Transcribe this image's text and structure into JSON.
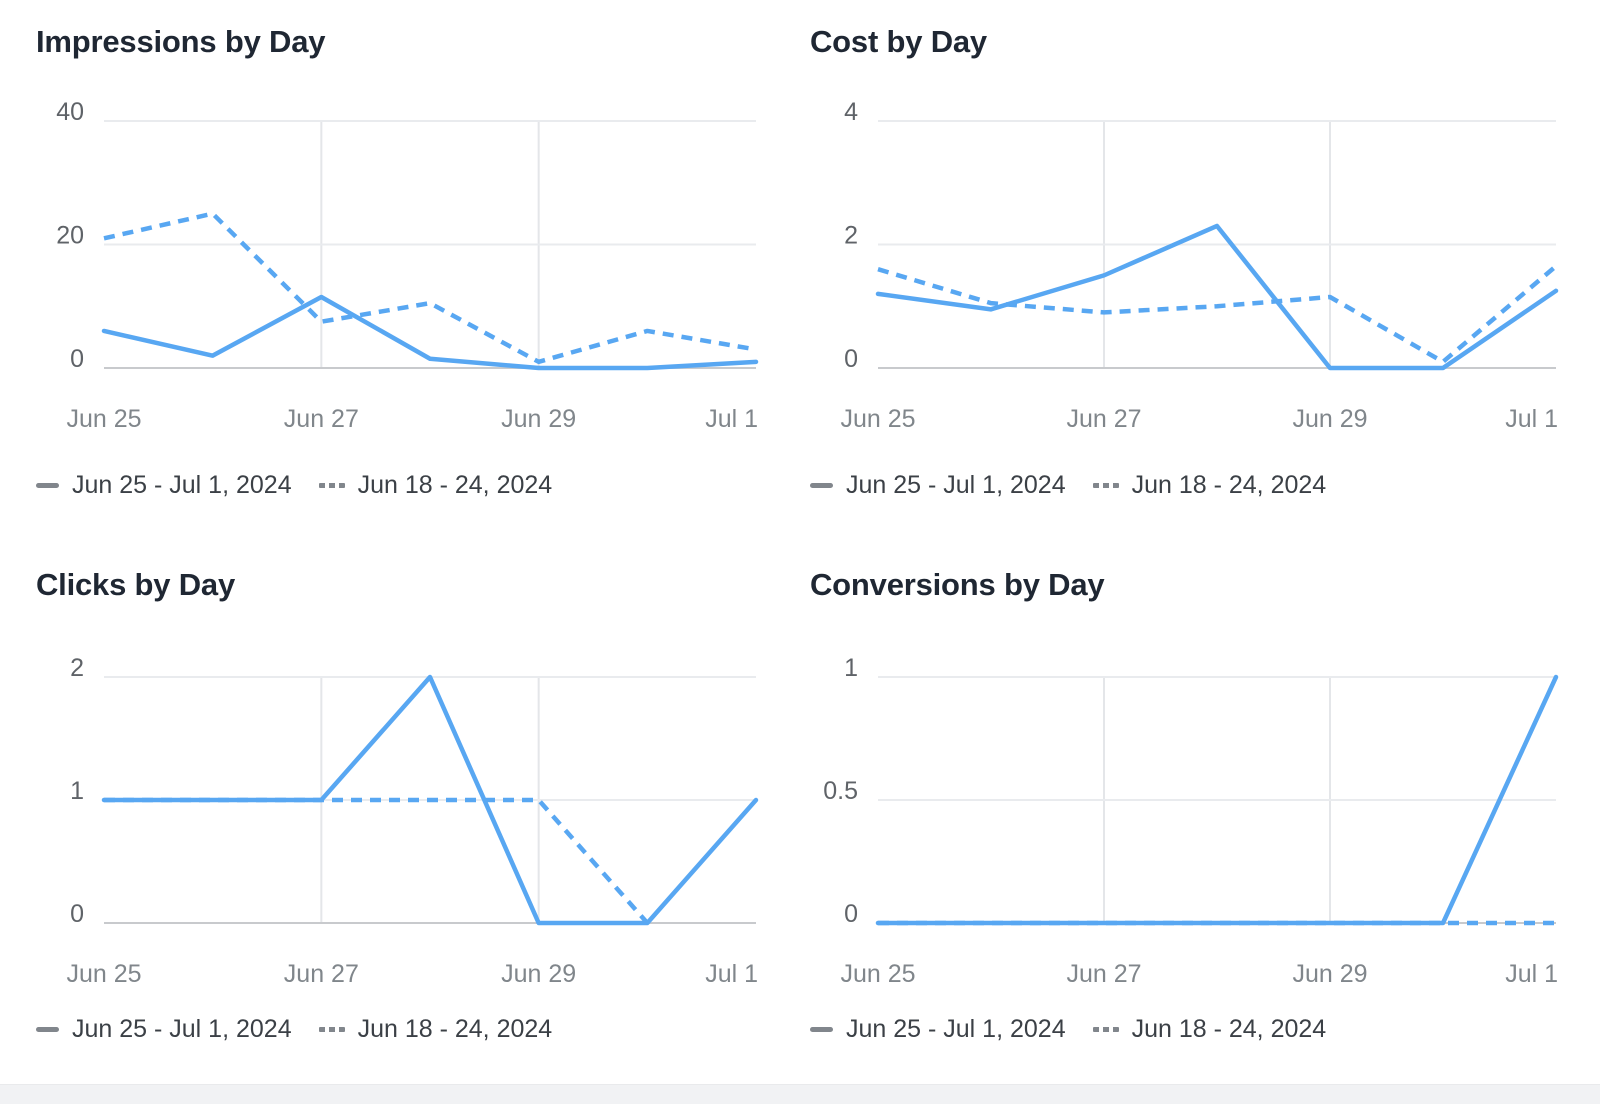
{
  "page": {
    "background": "#ffffff",
    "bottom_strip_color": "#f1f2f4"
  },
  "colors": {
    "line_blue": "#58a7f2",
    "grid": "#e9ebee",
    "vgrid": "#e4e6e9",
    "baseline": "#c8cacd",
    "y_tick_text": "#5f6368",
    "x_tick_text": "#80868b",
    "title_text": "#1f2733",
    "legend_text": "#3b4046",
    "legend_swatch": "#81868c"
  },
  "legend": {
    "current_period": "Jun 25 - Jul 1, 2024",
    "previous_period": "Jun 18 - 24, 2024"
  },
  "chart_data": [
    {
      "type": "line",
      "title": "Impressions by Day",
      "x": [
        "Jun 25",
        "Jun 26",
        "Jun 27",
        "Jun 28",
        "Jun 29",
        "Jun 30",
        "Jul 1"
      ],
      "x_tick_labels": [
        "Jun 25",
        "Jun 27",
        "Jun 29",
        "Jul 1"
      ],
      "ylim": [
        0,
        40
      ],
      "yticks": [
        0,
        20,
        40
      ],
      "y_tick_labels": [
        "0",
        "20",
        "40"
      ],
      "grid": "on",
      "legend_position": "bottom",
      "series": [
        {
          "name": "Jun 25 - Jul 1, 2024",
          "line_style": "solid",
          "values": [
            6,
            2,
            11.5,
            1.5,
            0,
            0,
            1
          ]
        },
        {
          "name": "Jun 18 - 24, 2024",
          "line_style": "dashed",
          "values": [
            21,
            25,
            7.5,
            10.5,
            1,
            6,
            3
          ]
        }
      ]
    },
    {
      "type": "line",
      "title": "Cost by Day",
      "x": [
        "Jun 25",
        "Jun 26",
        "Jun 27",
        "Jun 28",
        "Jun 29",
        "Jun 30",
        "Jul 1"
      ],
      "x_tick_labels": [
        "Jun 25",
        "Jun 27",
        "Jun 29",
        "Jul 1"
      ],
      "ylim": [
        0,
        4
      ],
      "yticks": [
        0,
        2,
        4
      ],
      "y_tick_labels": [
        "0",
        "2",
        "4"
      ],
      "grid": "on",
      "legend_position": "bottom",
      "series": [
        {
          "name": "Jun 25 - Jul 1, 2024",
          "line_style": "solid",
          "values": [
            1.2,
            0.95,
            1.5,
            2.3,
            0,
            0,
            1.25
          ]
        },
        {
          "name": "Jun 18 - 24, 2024",
          "line_style": "dashed",
          "values": [
            1.6,
            1.05,
            0.9,
            1.0,
            1.15,
            0.1,
            1.65
          ]
        }
      ]
    },
    {
      "type": "line",
      "title": "Clicks by Day",
      "x": [
        "Jun 25",
        "Jun 26",
        "Jun 27",
        "Jun 28",
        "Jun 29",
        "Jun 30",
        "Jul 1"
      ],
      "x_tick_labels": [
        "Jun 25",
        "Jun 27",
        "Jun 29",
        "Jul 1"
      ],
      "ylim": [
        0,
        2
      ],
      "yticks": [
        0,
        1,
        2
      ],
      "y_tick_labels": [
        "0",
        "1",
        "2"
      ],
      "grid": "on",
      "legend_position": "bottom",
      "series": [
        {
          "name": "Jun 25 - Jul 1, 2024",
          "line_style": "solid",
          "values": [
            1,
            1,
            1,
            2,
            0,
            0,
            1
          ]
        },
        {
          "name": "Jun 18 - 24, 2024",
          "line_style": "dashed",
          "values": [
            1,
            1,
            1,
            1,
            1,
            0,
            null
          ]
        }
      ]
    },
    {
      "type": "line",
      "title": "Conversions by Day",
      "x": [
        "Jun 25",
        "Jun 26",
        "Jun 27",
        "Jun 28",
        "Jun 29",
        "Jun 30",
        "Jul 1"
      ],
      "x_tick_labels": [
        "Jun 25",
        "Jun 27",
        "Jun 29",
        "Jul 1"
      ],
      "ylim": [
        0,
        1
      ],
      "yticks": [
        0,
        0.5,
        1
      ],
      "y_tick_labels": [
        "0",
        "0.5",
        "1"
      ],
      "grid": "on",
      "legend_position": "bottom",
      "series": [
        {
          "name": "Jun 25 - Jul 1, 2024",
          "line_style": "solid",
          "values": [
            0,
            0,
            0,
            0,
            0,
            0,
            1
          ]
        },
        {
          "name": "Jun 18 - 24, 2024",
          "line_style": "dashed",
          "values": [
            0,
            0,
            0,
            0,
            0,
            0,
            0
          ]
        }
      ]
    }
  ]
}
